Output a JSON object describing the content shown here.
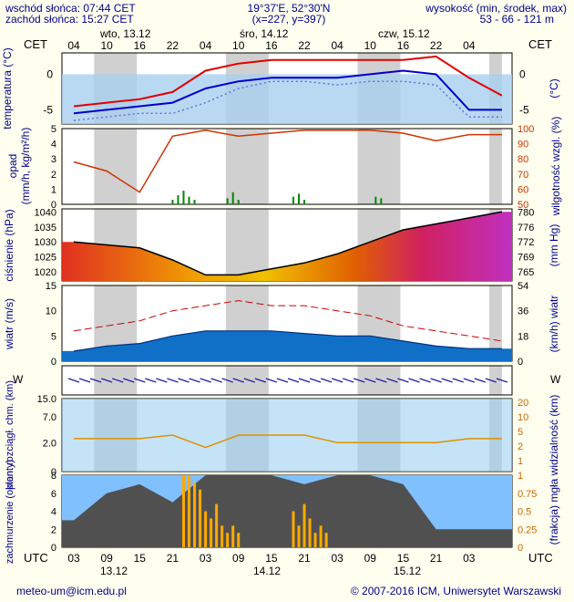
{
  "header": {
    "sunrise": "wschód słońca: 07:44 CET",
    "sunset": "zachód słońca: 15:27 CET",
    "coords": "19°37'E, 52°30'N",
    "grid": "(x=227, y=397)",
    "altitude_label": "wysokość (min, środek, max)",
    "altitude_values": "53 - 66 - 121 m"
  },
  "footer": {
    "email": "meteo-um@icm.edu.pl",
    "copyright": "© 2007-2016 ICM, Uniwersytet Warszawski"
  },
  "top_axis": {
    "tz": "CET",
    "hours": [
      "04",
      "10",
      "16",
      "22",
      "04",
      "10",
      "16",
      "22",
      "04",
      "10",
      "16",
      "22",
      "04"
    ],
    "days": [
      "wto, 13.12",
      "śro, 14.12",
      "czw, 15.12"
    ]
  },
  "bottom_axis": {
    "tz": "UTC",
    "hours": [
      "03",
      "09",
      "15",
      "21",
      "03",
      "09",
      "15",
      "21",
      "03",
      "09",
      "15",
      "21",
      "03"
    ],
    "days": [
      "13.12",
      "14.12",
      "15.12"
    ]
  },
  "colors": {
    "day_bg": "#d0d0d0",
    "night_bg": "#ffffff",
    "temp_max": "#e00000",
    "temp_mean": "#0000cc",
    "humidity": "#cc3300",
    "pressure_line": "#000000",
    "wind_gust": "#cc0000",
    "cloud_bg": "#80c0ff",
    "visibility": "#e09000",
    "fog_bar": "#ffaa00"
  },
  "chart_data": [
    {
      "type": "line",
      "panel": "temperature",
      "ylabel": "temperatura (°C)",
      "yticks": [
        0,
        -5
      ],
      "ylim": [
        -7,
        3
      ],
      "x_hours": [
        0,
        6,
        12,
        18,
        24,
        30,
        36,
        42,
        48,
        54,
        60,
        66,
        72,
        78
      ],
      "series": [
        {
          "values": [
            -4.5,
            -4,
            -3.5,
            -2.5,
            0.5,
            1.5,
            2,
            2,
            2,
            2,
            2,
            2.5,
            -0.5,
            -3
          ]
        },
        {
          "values": [
            -5.5,
            -5,
            -4.5,
            -4,
            -2,
            -1,
            -0.5,
            -0.5,
            -0.5,
            0,
            0.5,
            0,
            -5,
            -5
          ]
        },
        {
          "values": [
            -6.5,
            -6,
            -5.5,
            -5.5,
            -4,
            -2,
            -1,
            -1,
            -1.5,
            -1,
            -1,
            -1.5,
            -6,
            -6
          ]
        }
      ]
    },
    {
      "type": "line",
      "panel": "precipitation",
      "ylabel": "opad (mm/h, kg/m²/h)",
      "y2label": "wilgotność wzgl. (%)",
      "yticks": [
        0,
        1,
        2,
        3,
        4,
        5
      ],
      "y2ticks": [
        50,
        60,
        70,
        80,
        90,
        100
      ],
      "series": [
        {
          "x_hours": [
            0,
            6,
            12,
            18,
            24,
            30,
            36,
            42,
            48,
            54,
            60,
            66,
            72,
            78
          ],
          "values": [
            78,
            72,
            58,
            95,
            99,
            95,
            97,
            99,
            99,
            99,
            97,
            92,
            96,
            96
          ]
        }
      ],
      "bars": {
        "x_hours": [
          18,
          19,
          20,
          21,
          22,
          28,
          29,
          30,
          40,
          41,
          42,
          55,
          56
        ],
        "values": [
          0.3,
          0.6,
          0.9,
          0.5,
          0.3,
          0.4,
          0.8,
          0.3,
          0.5,
          0.7,
          0.3,
          0.5,
          0.4
        ]
      }
    },
    {
      "type": "area",
      "panel": "pressure",
      "ylabel": "ciśnienie (hPa)",
      "y2label": "(mm Hg)",
      "yticks": [
        1040,
        1035,
        1030,
        1025,
        1020
      ],
      "y2ticks": [
        780,
        776,
        772,
        769,
        765
      ],
      "ylim": [
        1017,
        1041
      ],
      "x_hours": [
        0,
        6,
        12,
        18,
        24,
        30,
        36,
        42,
        48,
        54,
        60,
        66,
        72,
        78
      ],
      "values": [
        1030,
        1029,
        1028,
        1024,
        1019,
        1019,
        1021,
        1023,
        1026,
        1030,
        1034,
        1036,
        1038,
        1040
      ]
    },
    {
      "type": "line",
      "panel": "wind",
      "ylabel": "wiatr (m/s)",
      "y2label": "(km/h) wiatr",
      "yticks": [
        0,
        5,
        10,
        15
      ],
      "y2ticks": [
        0,
        18,
        36,
        54
      ],
      "ylim": [
        0,
        15
      ],
      "x_hours": [
        0,
        6,
        12,
        18,
        24,
        30,
        36,
        42,
        48,
        54,
        60,
        66,
        72,
        78
      ],
      "series": [
        {
          "values": [
            2,
            3,
            3.5,
            5,
            6,
            6,
            6,
            5.5,
            5,
            5,
            4,
            3,
            2.5,
            2.5
          ]
        },
        {
          "values": [
            6,
            7,
            8,
            10,
            11,
            12,
            11,
            11,
            10,
            9,
            7,
            6,
            5,
            4
          ]
        }
      ]
    },
    {
      "type": "scatter",
      "panel": "visibility",
      "ylabel": "pion. rozciągł. chm. (km)",
      "y2label": "widzialność (km)",
      "yticks": [
        "15.0",
        "7.0",
        "2.0",
        "0"
      ],
      "y2ticks": [
        20,
        10,
        5,
        2,
        1
      ],
      "series": [
        {
          "x_hours": [
            0,
            6,
            12,
            18,
            24,
            30,
            36,
            42,
            48,
            54,
            60,
            66,
            72,
            78
          ],
          "values": [
            2.5,
            2.5,
            2.5,
            3,
            1.5,
            3,
            3,
            3,
            2,
            2,
            2,
            2,
            2.5,
            2.5
          ]
        }
      ]
    },
    {
      "type": "area",
      "panel": "cloud",
      "ylabel": "zachmurzenie (oktanty)",
      "y2label": "(frakcja) mgła",
      "yticks": [
        0,
        2,
        4,
        6,
        8
      ],
      "y2ticks": [
        0,
        0.25,
        0.5,
        0.75,
        1
      ],
      "ylim": [
        0,
        8
      ],
      "x_hours": [
        0,
        6,
        12,
        18,
        24,
        30,
        36,
        42,
        48,
        54,
        60,
        66,
        72,
        78
      ],
      "values": [
        3,
        6,
        7,
        5,
        8,
        8,
        8,
        7,
        8,
        8,
        7,
        2,
        2,
        2
      ],
      "fog_bars": {
        "x_hours": [
          20,
          21,
          22,
          23,
          24,
          25,
          26,
          27,
          28,
          29,
          30,
          40,
          41,
          42,
          43,
          44,
          45,
          46
        ],
        "values": [
          1,
          1,
          0.9,
          0.8,
          0.5,
          0.4,
          0.6,
          0.3,
          0.2,
          0.3,
          0.2,
          0.5,
          0.3,
          0.6,
          0.4,
          0.2,
          0.3,
          0.2
        ]
      }
    }
  ]
}
